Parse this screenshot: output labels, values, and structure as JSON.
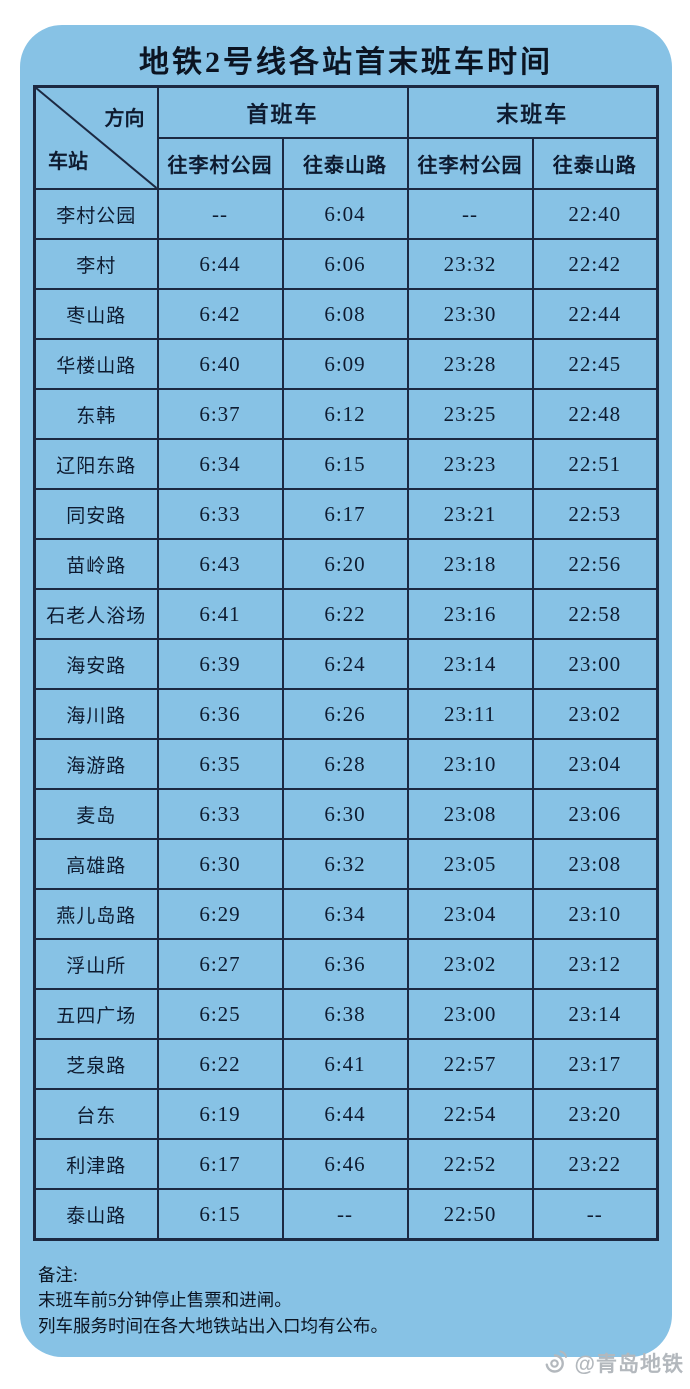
{
  "title": "地铁2号线各站首末班车时间",
  "table": {
    "corner": {
      "top_right": "方向",
      "bottom_left": "车站"
    },
    "group_headers": {
      "first_train": "首班车",
      "last_train": "末班车"
    },
    "direction_headers": {
      "first_to_licun_park": "往李村公园",
      "first_to_taishan_road": "往泰山路",
      "last_to_licun_park": "往李村公园",
      "last_to_taishan_road": "往泰山路"
    },
    "rows": [
      {
        "station": "李村公园",
        "times": [
          "--",
          "6:04",
          "--",
          "22:40"
        ]
      },
      {
        "station": "李村",
        "times": [
          "6:44",
          "6:06",
          "23:32",
          "22:42"
        ]
      },
      {
        "station": "枣山路",
        "times": [
          "6:42",
          "6:08",
          "23:30",
          "22:44"
        ]
      },
      {
        "station": "华楼山路",
        "times": [
          "6:40",
          "6:09",
          "23:28",
          "22:45"
        ]
      },
      {
        "station": "东韩",
        "times": [
          "6:37",
          "6:12",
          "23:25",
          "22:48"
        ]
      },
      {
        "station": "辽阳东路",
        "times": [
          "6:34",
          "6:15",
          "23:23",
          "22:51"
        ]
      },
      {
        "station": "同安路",
        "times": [
          "6:33",
          "6:17",
          "23:21",
          "22:53"
        ]
      },
      {
        "station": "苗岭路",
        "times": [
          "6:43",
          "6:20",
          "23:18",
          "22:56"
        ]
      },
      {
        "station": "石老人浴场",
        "times": [
          "6:41",
          "6:22",
          "23:16",
          "22:58"
        ]
      },
      {
        "station": "海安路",
        "times": [
          "6:39",
          "6:24",
          "23:14",
          "23:00"
        ]
      },
      {
        "station": "海川路",
        "times": [
          "6:36",
          "6:26",
          "23:11",
          "23:02"
        ]
      },
      {
        "station": "海游路",
        "times": [
          "6:35",
          "6:28",
          "23:10",
          "23:04"
        ]
      },
      {
        "station": "麦岛",
        "times": [
          "6:33",
          "6:30",
          "23:08",
          "23:06"
        ]
      },
      {
        "station": "高雄路",
        "times": [
          "6:30",
          "6:32",
          "23:05",
          "23:08"
        ]
      },
      {
        "station": "燕儿岛路",
        "times": [
          "6:29",
          "6:34",
          "23:04",
          "23:10"
        ]
      },
      {
        "station": "浮山所",
        "times": [
          "6:27",
          "6:36",
          "23:02",
          "23:12"
        ]
      },
      {
        "station": "五四广场",
        "times": [
          "6:25",
          "6:38",
          "23:00",
          "23:14"
        ]
      },
      {
        "station": "芝泉路",
        "times": [
          "6:22",
          "6:41",
          "22:57",
          "23:17"
        ]
      },
      {
        "station": "台东",
        "times": [
          "6:19",
          "6:44",
          "22:54",
          "23:20"
        ]
      },
      {
        "station": "利津路",
        "times": [
          "6:17",
          "6:46",
          "22:52",
          "23:22"
        ]
      },
      {
        "station": "泰山路",
        "times": [
          "6:15",
          "--",
          "22:50",
          "--"
        ]
      }
    ]
  },
  "notes": {
    "label": "备注:",
    "line1": "末班车前5分钟停止售票和进闸。",
    "line2": "列车服务时间在各大地铁站出入口均有公布。"
  },
  "watermark": {
    "handle": "@青岛地铁"
  },
  "colors": {
    "card_background": "#87c2e5",
    "grid_border": "#1c2942",
    "text": "#0b1422",
    "watermark_gray": "#b3b8bd"
  }
}
